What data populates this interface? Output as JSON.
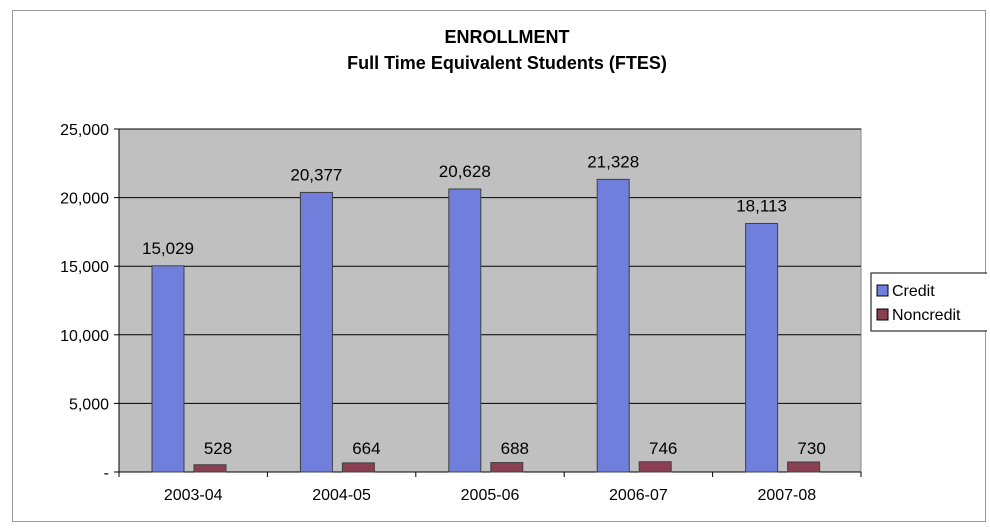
{
  "chart_data": {
    "type": "bar",
    "title": "ENROLLMENT",
    "subtitle": "Full Time Equivalent Students (FTES)",
    "xlabel": "",
    "ylabel": "",
    "categories": [
      "2003-04",
      "2004-05",
      "2005-06",
      "2006-07",
      "2007-08"
    ],
    "series": [
      {
        "name": "Credit",
        "values": [
          15029,
          20377,
          20628,
          21328,
          18113
        ],
        "labels": [
          "15,029",
          "20,377",
          "20,628",
          "21,328",
          "18,113"
        ],
        "color": "#6f7fdb"
      },
      {
        "name": "Noncredit",
        "values": [
          528,
          664,
          688,
          746,
          730
        ],
        "labels": [
          "528",
          "664",
          "688",
          "746",
          "730"
        ],
        "color": "#8b3f52"
      }
    ],
    "ylim": [
      0,
      25000
    ],
    "yticks": [
      0,
      5000,
      10000,
      15000,
      20000,
      25000
    ],
    "ytick_labels": [
      "-",
      "5,000",
      "10,000",
      "15,000",
      "20,000",
      "25,000"
    ],
    "grid": true,
    "plot_background": "#c0c0c0",
    "legend_position": "right"
  }
}
